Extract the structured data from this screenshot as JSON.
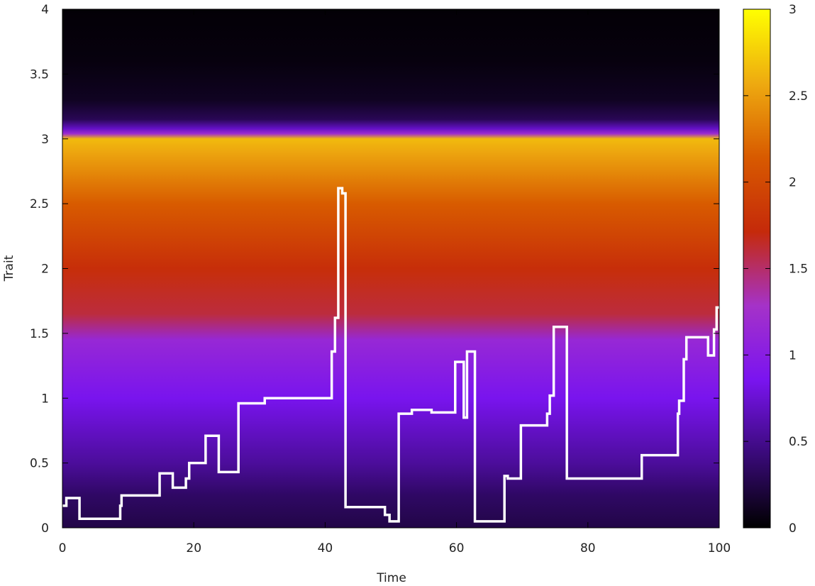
{
  "chart_data": {
    "type": "heatmap",
    "xlabel": "Time",
    "ylabel": "Trait",
    "xlim": [
      0,
      100
    ],
    "ylim": [
      0,
      4
    ],
    "xticks": [
      0,
      20,
      40,
      60,
      80,
      100
    ],
    "xtick_labels": [
      "0",
      "20",
      "40",
      "60",
      "80",
      "100"
    ],
    "yticks": [
      0,
      0.5,
      1,
      1.5,
      2,
      2.5,
      3,
      3.5,
      4
    ],
    "ytick_labels": [
      "0",
      "0.5",
      "1",
      "1.5",
      "2",
      "2.5",
      "3",
      "3.5",
      "4"
    ],
    "colorbar": {
      "range": [
        0,
        3
      ],
      "ticks": [
        0,
        0.5,
        1,
        1.5,
        2,
        2.5,
        3
      ],
      "tick_labels": [
        "0",
        "0.5",
        "1",
        "1.5",
        "2",
        "2.5",
        "3"
      ],
      "colormap": [
        "#000000",
        "#3a0a7a",
        "#7a14f0",
        "#a532c8",
        "#c52a0a",
        "#d85a00",
        "#eeaa10",
        "#ffff00"
      ]
    },
    "heatmap_profile": {
      "trait": [
        0,
        0.25,
        0.5,
        1.0,
        1.45,
        1.65,
        2.0,
        2.5,
        2.9,
        3.0,
        3.04,
        3.08,
        3.15,
        3.3,
        3.6,
        4.0
      ],
      "value": [
        0.25,
        0.35,
        0.55,
        0.85,
        1.15,
        1.6,
        1.75,
        2.15,
        2.55,
        2.65,
        1.2,
        0.7,
        0.3,
        0.12,
        0.05,
        0.02
      ]
    },
    "series": [
      {
        "color": "#ffffff",
        "x": [
          0,
          0.6,
          2.6,
          8.8,
          9.0,
          14.8,
          16.8,
          18.8,
          19.3,
          21.8,
          23.8,
          26.8,
          30.8,
          41.0,
          41.5,
          42.0,
          42.6,
          43.1,
          49.1,
          49.8,
          51.2,
          53.2,
          56.2,
          59.8,
          61.1,
          61.6,
          62.8,
          67.3,
          67.8,
          69.8,
          73.8,
          74.2,
          74.8,
          75.8,
          76.8,
          88.2,
          93.7,
          93.9,
          94.6,
          95.0,
          95.3,
          98.3,
          99.2,
          99.6,
          100
        ],
        "y": [
          0.17,
          0.23,
          0.07,
          0.17,
          0.25,
          0.42,
          0.31,
          0.38,
          0.5,
          0.71,
          0.43,
          0.96,
          1.0,
          1.36,
          1.62,
          2.62,
          2.58,
          0.16,
          0.1,
          0.05,
          0.88,
          0.91,
          0.89,
          1.28,
          0.85,
          1.36,
          0.05,
          0.4,
          0.38,
          0.79,
          0.88,
          1.02,
          1.55,
          1.55,
          0.38,
          0.56,
          0.88,
          0.98,
          1.3,
          1.47,
          1.47,
          1.33,
          1.53,
          1.7,
          1.7
        ]
      }
    ]
  }
}
